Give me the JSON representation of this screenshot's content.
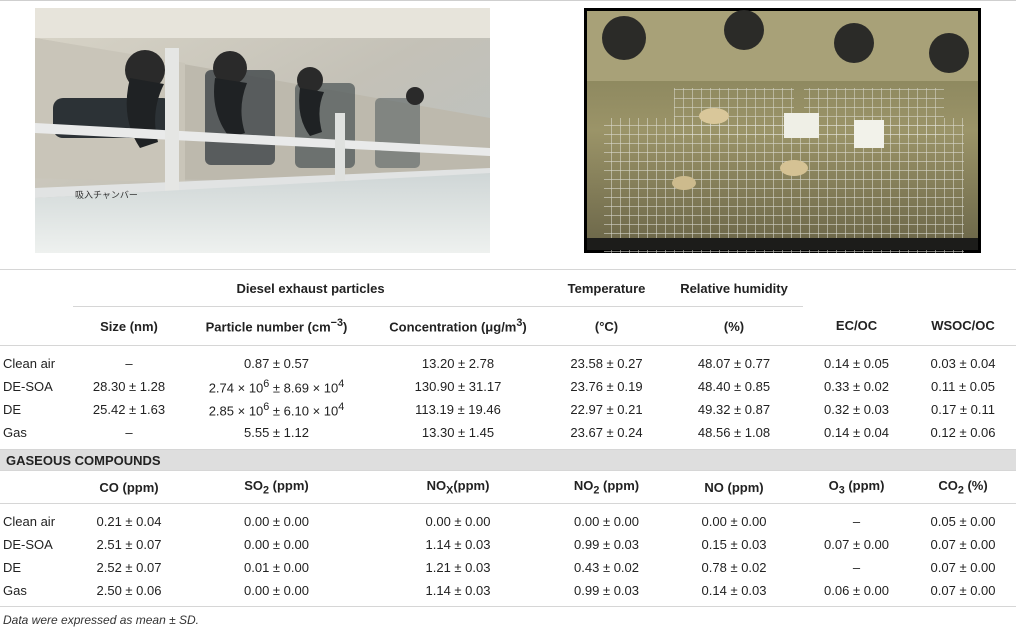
{
  "table1": {
    "group_headers": {
      "diesel": "Diesel exhaust particles",
      "temperature": "Temperature",
      "humidity": "Relative humidity"
    },
    "sub_headers": [
      "Size (nm)",
      "Particle number (cm−3)",
      "Concentration (μg/m3)",
      "(°C)",
      "(%)",
      "EC/OC",
      "WSOC/OC"
    ],
    "rows": [
      {
        "label": "Clean air",
        "size": "–",
        "number": "0.87 ± 0.57",
        "conc": "13.20 ± 2.78",
        "temp": "23.58 ± 0.27",
        "rh": "48.07 ± 0.77",
        "ecoc": "0.14 ± 0.05",
        "wsoc": "0.03 ± 0.04"
      },
      {
        "label": "DE-SOA",
        "size": "28.30 ± 1.28",
        "number": "2.74 × 106 ± 8.69 × 104",
        "conc": "130.90 ± 31.17",
        "temp": "23.76 ± 0.19",
        "rh": "48.40 ± 0.85",
        "ecoc": "0.33 ± 0.02",
        "wsoc": "0.11 ± 0.05"
      },
      {
        "label": "DE",
        "size": "25.42 ± 1.63",
        "number": "2.85 × 106 ± 6.10 × 104",
        "conc": "113.19 ± 19.46",
        "temp": "22.97 ± 0.21",
        "rh": "49.32 ± 0.87",
        "ecoc": "0.32 ± 0.03",
        "wsoc": "0.17 ± 0.11"
      },
      {
        "label": "Gas",
        "size": "–",
        "number": "5.55 ± 1.12",
        "conc": "13.30 ± 1.45",
        "temp": "23.67 ± 0.24",
        "rh": "48.56 ± 1.08",
        "ecoc": "0.14 ± 0.04",
        "wsoc": "0.12 ± 0.06"
      }
    ]
  },
  "section_title": "GASEOUS COMPOUNDS",
  "table2": {
    "headers": [
      "CO (ppm)",
      "SO2 (ppm)",
      "NOX(ppm)",
      "NO2 (ppm)",
      "NO (ppm)",
      "O3 (ppm)",
      "CO2 (%)"
    ],
    "rows": [
      {
        "label": "Clean air",
        "co": "0.21 ± 0.04",
        "so2": "0.00 ± 0.00",
        "nox": "0.00 ± 0.00",
        "no2": "0.00 ± 0.00",
        "no": "0.00 ± 0.00",
        "o3": "–",
        "co2": "0.05 ± 0.00"
      },
      {
        "label": "DE-SOA",
        "co": "2.51 ± 0.07",
        "so2": "0.00 ± 0.00",
        "nox": "1.14 ± 0.03",
        "no2": "0.99 ± 0.03",
        "no": "0.15 ± 0.03",
        "o3": "0.07 ± 0.00",
        "co2": "0.07 ± 0.00"
      },
      {
        "label": "DE",
        "co": "2.52 ± 0.07",
        "so2": "0.01 ± 0.00",
        "nox": "1.21 ± 0.03",
        "no2": "0.43 ± 0.02",
        "no": "0.78 ± 0.02",
        "o3": "–",
        "co2": "0.07 ± 0.00"
      },
      {
        "label": "Gas",
        "co": "2.50 ± 0.06",
        "so2": "0.00 ± 0.00",
        "nox": "1.14 ± 0.03",
        "no2": "0.99 ± 0.03",
        "no": "0.14 ± 0.03",
        "o3": "0.06 ± 0.00",
        "co2": "0.07 ± 0.00"
      }
    ]
  },
  "photo_left_sign": "吸入チャンバー",
  "footnote": "Data were expressed as mean ± SD."
}
